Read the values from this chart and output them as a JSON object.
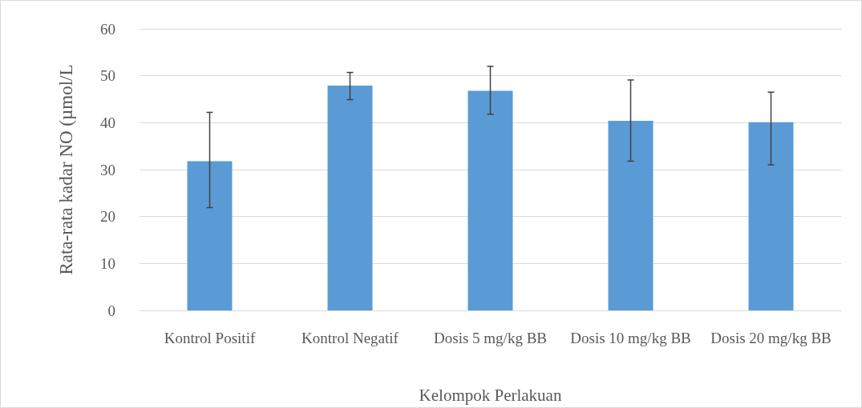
{
  "chart_data": {
    "type": "bar",
    "xlabel": "Kelompok Perlakuan",
    "ylabel": "Rata-rata kadar NO (µmol/L",
    "categories": [
      "Kontrol Positif",
      "Kontrol Negatif",
      "Dosis 5 mg/kg BB",
      "Dosis 10 mg/kg BB",
      "Dosis 20 mg/kg BB"
    ],
    "values": [
      31.8,
      47.9,
      46.8,
      40.4,
      40.1
    ],
    "errors": [
      [
        21.9,
        42.2
      ],
      [
        44.9,
        50.7
      ],
      [
        41.8,
        52
      ],
      [
        31.8,
        49.1
      ],
      [
        31,
        46.5
      ]
    ],
    "color": "#5b9bd5",
    "ylim": [
      0,
      60
    ],
    "yticks": [
      0,
      10,
      20,
      30,
      40,
      50,
      60
    ],
    "grid": "y"
  }
}
